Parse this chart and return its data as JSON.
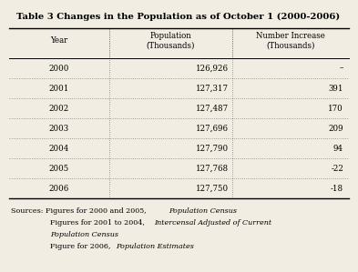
{
  "title": "Table 3 Changes in the Population as of October 1 (2000-2006)",
  "columns": [
    "Year",
    "Population\n(Thousands)",
    "Number Increase\n(Thousands)"
  ],
  "rows": [
    [
      "2000",
      "126,926",
      "–"
    ],
    [
      "2001",
      "127,317",
      "391"
    ],
    [
      "2002",
      "127,487",
      "170"
    ],
    [
      "2003",
      "127,696",
      "209"
    ],
    [
      "2004",
      "127,790",
      "94"
    ],
    [
      "2005",
      "127,768",
      "-22"
    ],
    [
      "2006",
      "127,750",
      "-18"
    ]
  ],
  "bg_color": "#f2ede3",
  "title_fontsize": 7.2,
  "cell_fontsize": 6.2,
  "source_fontsize": 5.8
}
